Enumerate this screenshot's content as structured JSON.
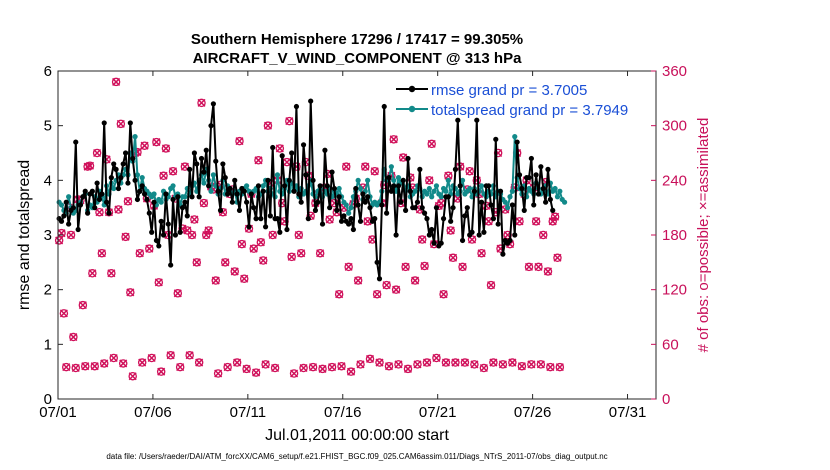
{
  "chart_data": {
    "type": "line",
    "title_line1": "Southern Hemisphere 17296 / 17417 = 99.305%",
    "title_line2": "AIRCRAFT_V_WIND_COMPONENT @ 313 hPa",
    "ylabel": "rmse and totalspread",
    "ylabel_right": "# of obs: o=possible; ×=assimilated",
    "xlabel": "Jul.01,2011 00:00:00 start",
    "footnote": "data file: /Users/raeder/DAI/ATM_forcXX/CAM6_setup/f.e21.FHIST_BGC.f09_025.CAM6assim.011/Diags_NTrS_2011-07/obs_diag_output.nc",
    "x_ticks": [
      "07/01",
      "07/06",
      "07/11",
      "07/16",
      "07/21",
      "07/26",
      "07/31"
    ],
    "y_ticks": [
      "0",
      "1",
      "2",
      "3",
      "4",
      "5",
      "6"
    ],
    "y_right_ticks": [
      "0",
      "60",
      "120",
      "180",
      "240",
      "300",
      "360"
    ],
    "ylim": [
      0,
      6
    ],
    "ylim_right": [
      0,
      360
    ],
    "xlim_days": [
      0,
      31.5
    ],
    "series": [
      {
        "name": "rmse",
        "legend": "rmse grand pr = 3.7005",
        "color": "#000000",
        "values": [
          3.3,
          3.25,
          3.35,
          3.6,
          3.2,
          3.45,
          3.5,
          4.7,
          3.1,
          3.55,
          3.7,
          3.8,
          3.4,
          3.75,
          3.8,
          3.5,
          3.95,
          3.65,
          3.75,
          5.05,
          3.6,
          3.4,
          4.05,
          4.3,
          4.2,
          3.85,
          4.05,
          4.3,
          4.5,
          3.95,
          5.05,
          4.4,
          4.0,
          3.65,
          3.8,
          3.9,
          3.75,
          3.65,
          3.4,
          3.05,
          3.6,
          2.9,
          2.8,
          3.25,
          3.0,
          3.75,
          3.2,
          2.45,
          3.65,
          3.0,
          3.7,
          3.05,
          3.5,
          3.6,
          3.35,
          4.2,
          3.7,
          4.5,
          4.3,
          3.7,
          4.4,
          4.15,
          4.55,
          3.9,
          5.0,
          5.4,
          4.35,
          3.8,
          3.45,
          4.3,
          4.05,
          3.75,
          3.85,
          3.6,
          4.0,
          3.75,
          3.45,
          3.85,
          3.8,
          3.6,
          3.15,
          3.75,
          3.5,
          3.3,
          3.9,
          3.3,
          3.8,
          3.15,
          4.0,
          3.35,
          4.6,
          3.3,
          3.3,
          3.05,
          4.45,
          3.9,
          3.1,
          4.0,
          4.5,
          3.8,
          5.35,
          3.75,
          3.6,
          4.65,
          4.1,
          3.3,
          5.45,
          4.0,
          3.45,
          3.6,
          3.9,
          3.2,
          4.55,
          3.9,
          3.5,
          4.15,
          3.85,
          3.45,
          3.7,
          3.25,
          3.35,
          3.25,
          3.2,
          3.3,
          3.1,
          3.85,
          3.55,
          3.25,
          3.75,
          3.6,
          3.7,
          3.5,
          3.25,
          3.3,
          2.5,
          2.2,
          3.55,
          5.35,
          3.4,
          4.05,
          3.8,
          3.9,
          3.0,
          3.9,
          3.6,
          4.0,
          3.45,
          4.4,
          3.8,
          3.5,
          3.5,
          3.6,
          4.2,
          3.5,
          3.4,
          3.3,
          3.0,
          3.1,
          2.85,
          3.5,
          2.8,
          2.85,
          3.3,
          3.7,
          3.7,
          3.25,
          3.5,
          4.2,
          5.1,
          3.9,
          2.9,
          3.35,
          3.5,
          3.0,
          3.05,
          3.8,
          5.1,
          3.0,
          3.6,
          3.05,
          3.9,
          3.9,
          3.55,
          3.3,
          4.75,
          3.2,
          3.8,
          2.65,
          2.9,
          2.85,
          2.9,
          3.55,
          3.0,
          4.7,
          4.1,
          3.85,
          3.45,
          4.05,
          4.05,
          4.4,
          3.55,
          4.1,
          3.75,
          4.25,
          3.85,
          3.6,
          4.2,
          3.65,
          3.45
        ]
      },
      {
        "name": "totalspread",
        "legend": "totalspread grand pr = 3.7949",
        "color": "#128a8a",
        "values": [
          3.6,
          3.55,
          3.45,
          3.4,
          3.7,
          3.5,
          3.4,
          3.45,
          3.55,
          3.6,
          3.7,
          3.75,
          3.45,
          3.55,
          3.5,
          3.7,
          3.6,
          3.8,
          3.7,
          3.55,
          3.9,
          3.75,
          3.95,
          3.85,
          4.0,
          4.1,
          3.95,
          4.1,
          4.2,
          4.1,
          4.5,
          4.35,
          4.8,
          4.1,
          3.8,
          4.05,
          3.85,
          3.8,
          3.75,
          3.7,
          3.75,
          3.55,
          3.65,
          3.6,
          3.8,
          3.65,
          3.7,
          3.85,
          3.9,
          3.7,
          3.75,
          3.55,
          3.7,
          3.7,
          3.85,
          3.75,
          3.9,
          3.95,
          3.8,
          4.0,
          4.1,
          3.95,
          4.2,
          4.0,
          3.8,
          4.1,
          3.9,
          3.75,
          3.85,
          4.0,
          3.75,
          3.9,
          3.85,
          3.75,
          3.8,
          3.6,
          3.8,
          3.75,
          3.85,
          3.9,
          3.8,
          3.75,
          3.8,
          3.85,
          3.7,
          3.75,
          3.9,
          4.0,
          3.8,
          3.85,
          3.75,
          3.7,
          4.1,
          3.8,
          3.75,
          3.85,
          4.0,
          3.8,
          3.95,
          3.85,
          3.9,
          3.7,
          3.85,
          3.75,
          3.8,
          3.9,
          4.0,
          3.75,
          3.7,
          3.8,
          3.85,
          3.7,
          3.8,
          3.75,
          3.85,
          3.7,
          3.8,
          3.75,
          3.85,
          3.7,
          3.6,
          3.55,
          3.4,
          3.5,
          3.7,
          3.8,
          4.0,
          3.85,
          3.65,
          3.8,
          4.0,
          3.7,
          3.55,
          3.6,
          3.55,
          3.6,
          3.8,
          4.2,
          4.0,
          4.05,
          4.25,
          4.0,
          3.8,
          4.05,
          3.95,
          4.0,
          3.8,
          3.9,
          3.7,
          3.75,
          3.8,
          3.9,
          3.85,
          3.7,
          3.8,
          3.75,
          3.85,
          3.7,
          3.8,
          3.9,
          3.75,
          3.7,
          3.85,
          3.8,
          4.0,
          3.75,
          3.9,
          3.85,
          3.75,
          3.8,
          4.0,
          3.75,
          3.8,
          3.85,
          3.7,
          3.85,
          3.75,
          3.8,
          3.9,
          3.75,
          3.7,
          3.8,
          3.75,
          3.9,
          3.7,
          3.8,
          3.75,
          3.65,
          3.6,
          3.5,
          3.7,
          3.8,
          4.8,
          4.05,
          3.85,
          3.75,
          3.9,
          3.7,
          3.85,
          3.8,
          3.75,
          3.95,
          3.85,
          3.75,
          3.8,
          3.9,
          3.75,
          3.95,
          3.8,
          3.85,
          3.7,
          3.8,
          3.65,
          3.6
        ]
      }
    ],
    "obs_series": {
      "name": "# of obs",
      "color": "#d0105a",
      "values": [
        174,
        182,
        94,
        35,
        210,
        180,
        68,
        34,
        219,
        218,
        103,
        36,
        255,
        256,
        138,
        36,
        270,
        205,
        160,
        39,
        263,
        205,
        138,
        45,
        348,
        208,
        302,
        39,
        178,
        217,
        117,
        25,
        270,
        271,
        160,
        40,
        278,
        220,
        165,
        45,
        212,
        282,
        128,
        30,
        245,
        275,
        180,
        48,
        250,
        220,
        116,
        35,
        187,
        255,
        185,
        48,
        180,
        197,
        150,
        40,
        325,
        215,
        180,
        185,
        233,
        230,
        130,
        28,
        235,
        205,
        150,
        35,
        225,
        230,
        140,
        40,
        283,
        170,
        132,
        33,
        187,
        225,
        165,
        29,
        262,
        172,
        152,
        38,
        300,
        237,
        180,
        34,
        240,
        275,
        215,
        195,
        260,
        305,
        156,
        28,
        255,
        180,
        160,
        34,
        260,
        245,
        201,
        35,
        215,
        225,
        160,
        33,
        232,
        247,
        197,
        35,
        215,
        205,
        115,
        36,
        210,
        255,
        145,
        30,
        214,
        220,
        130,
        38,
        232,
        255,
        195,
        44,
        175,
        250,
        115,
        40,
        215,
        235,
        125,
        36,
        245,
        285,
        120,
        38,
        215,
        265,
        145,
        33,
        243,
        232,
        130,
        38,
        208,
        175,
        146,
        40,
        240,
        280,
        170,
        45,
        212,
        215,
        115,
        40,
        245,
        185,
        155,
        40,
        220,
        255,
        145,
        40,
        230,
        250,
        175,
        38,
        240,
        225,
        160,
        34,
        212,
        195,
        125,
        40,
        205,
        270,
        165,
        38,
        208,
        180,
        170,
        40,
        232,
        270,
        195,
        36,
        225,
        240,
        145,
        38,
        232,
        195,
        145,
        38,
        180,
        238,
        140,
        35,
        195,
        200,
        155,
        35
      ]
    }
  }
}
